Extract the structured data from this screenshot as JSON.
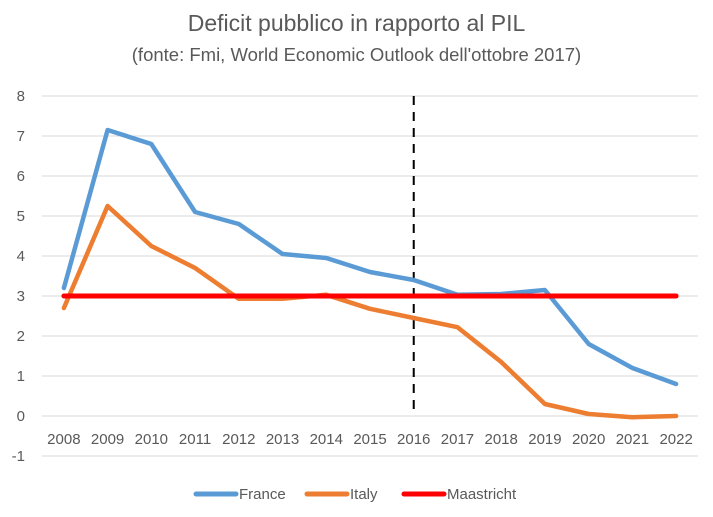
{
  "chart_data": {
    "type": "line",
    "title": "Deficit pubblico in rapporto al PIL",
    "subtitle": "(fonte: Fmi, World Economic Outlook dell'ottobre 2017)",
    "xlabel": "",
    "ylabel": "",
    "categories": [
      "2008",
      "2009",
      "2010",
      "2011",
      "2012",
      "2013",
      "2014",
      "2015",
      "2016",
      "2017",
      "2018",
      "2019",
      "2020",
      "2021",
      "2022"
    ],
    "ylim": [
      -1,
      8
    ],
    "yticks": [
      -1,
      0,
      1,
      2,
      3,
      4,
      5,
      6,
      7,
      8
    ],
    "grid": true,
    "legend_position": "bottom",
    "series": [
      {
        "name": "France",
        "color": "#5B9BD5",
        "values": [
          3.2,
          7.15,
          6.8,
          5.1,
          4.8,
          4.05,
          3.95,
          3.6,
          3.4,
          3.03,
          3.05,
          3.15,
          1.8,
          1.2,
          0.8
        ]
      },
      {
        "name": "Italy",
        "color": "#ED7D31",
        "values": [
          2.7,
          5.25,
          4.25,
          3.7,
          2.93,
          2.93,
          3.03,
          2.68,
          2.45,
          2.22,
          1.35,
          0.3,
          0.05,
          -0.03,
          0.0
        ]
      },
      {
        "name": "Maastricht",
        "color": "#FF0000",
        "values": [
          3,
          3,
          3,
          3,
          3,
          3,
          3,
          3,
          3,
          3,
          3,
          3,
          3,
          3,
          3
        ]
      }
    ],
    "annotations": [
      {
        "type": "vertical-dashed-line",
        "at_category": "2016",
        "from": 0,
        "to": 8,
        "color": "#000000"
      }
    ]
  }
}
